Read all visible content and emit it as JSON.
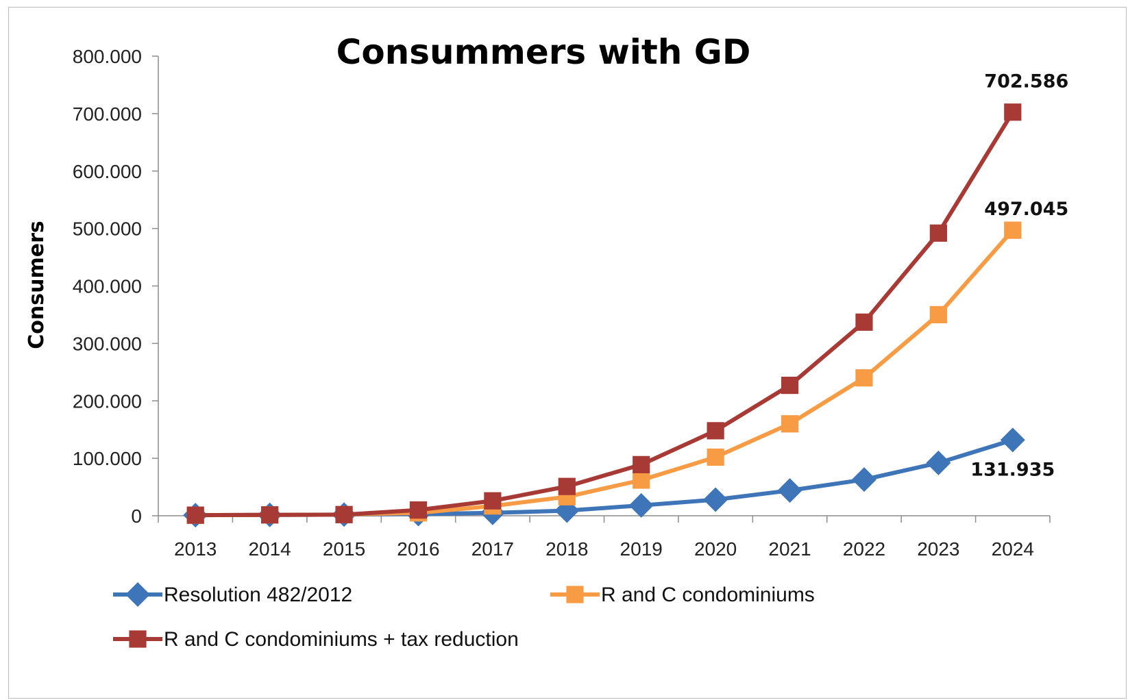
{
  "chart_data": {
    "type": "line",
    "title": "Consummers with GD",
    "xlabel": "",
    "ylabel": "Consumers",
    "ylim": [
      0,
      800000
    ],
    "yticks": [
      "0",
      "100.000",
      "200.000",
      "300.000",
      "400.000",
      "500.000",
      "600.000",
      "700.000",
      "800.000"
    ],
    "categories": [
      "2013",
      "2014",
      "2015",
      "2016",
      "2017",
      "2018",
      "2019",
      "2020",
      "2021",
      "2022",
      "2023",
      "2024"
    ],
    "grid": false,
    "legend_position": "bottom",
    "series": [
      {
        "name": "Resolution 482/2012",
        "color": "#3e74b8",
        "marker": "diamond",
        "values": [
          1000,
          1500,
          2000,
          3000,
          5000,
          9000,
          18000,
          28000,
          44000,
          63000,
          92000,
          131935
        ],
        "end_label": "131.935"
      },
      {
        "name": "R and C condominiums",
        "color": "#f79b45",
        "marker": "square",
        "values": [
          1000,
          1500,
          2000,
          5000,
          17000,
          33000,
          62000,
          102000,
          160000,
          240000,
          350000,
          497045
        ],
        "end_label": "497.045"
      },
      {
        "name": "R and C condominiums + tax reduction",
        "color": "#a83a36",
        "marker": "square",
        "values": [
          1000,
          1500,
          2000,
          10000,
          26000,
          51000,
          89000,
          148000,
          227000,
          337000,
          492000,
          702586
        ],
        "end_label": "702.586"
      }
    ]
  }
}
